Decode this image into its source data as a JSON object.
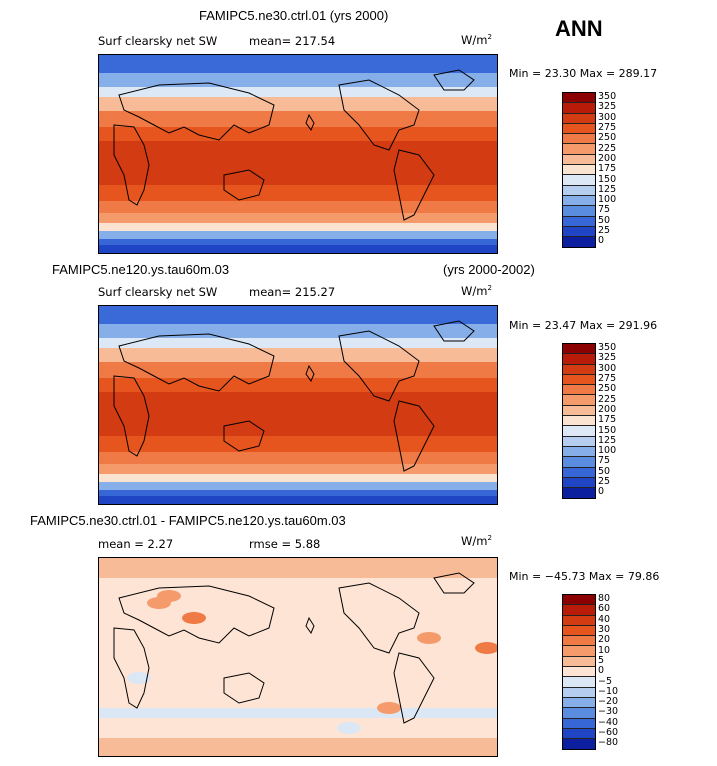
{
  "page": {
    "season": "ANN"
  },
  "panels": [
    {
      "title_left": "FAMIPC5.ne30.ctrl.01 (yrs 2000)",
      "title_right": "",
      "variable": "Surf clearsky net SW",
      "mean_label": "mean= 217.54",
      "units": "W/m",
      "units_sup": "2",
      "minmax": "Min =  23.30 Max = 289.17",
      "colorbar": {
        "labels": [
          "350",
          "325",
          "300",
          "275",
          "250",
          "225",
          "200",
          "175",
          "150",
          "125",
          "100",
          "75",
          "50",
          "25",
          "0"
        ],
        "colors": [
          "#8b0000",
          "#b81c08",
          "#d33b12",
          "#e6551e",
          "#f07a45",
          "#f59a6b",
          "#f8bb98",
          "#fbe3d2",
          "#dde8f6",
          "#b5cdef",
          "#86aee8",
          "#5a8ce0",
          "#3766d6",
          "#1f44c4",
          "#0c1f9e"
        ]
      },
      "map_type": "abs"
    },
    {
      "title_left": "FAMIPC5.ne120.ys.tau60m.03",
      "title_right": "(yrs 2000-2002)",
      "variable": "Surf clearsky net SW",
      "mean_label": "mean= 215.27",
      "units": "W/m",
      "units_sup": "2",
      "minmax": "Min =  23.47 Max = 291.96",
      "colorbar": {
        "labels": [
          "350",
          "325",
          "300",
          "275",
          "250",
          "225",
          "200",
          "175",
          "150",
          "125",
          "100",
          "75",
          "50",
          "25",
          "0"
        ],
        "colors": [
          "#8b0000",
          "#b81c08",
          "#d33b12",
          "#e6551e",
          "#f07a45",
          "#f59a6b",
          "#f8bb98",
          "#fbe3d2",
          "#dde8f6",
          "#b5cdef",
          "#86aee8",
          "#5a8ce0",
          "#3766d6",
          "#1f44c4",
          "#0c1f9e"
        ]
      },
      "map_type": "abs"
    },
    {
      "title_left": "FAMIPC5.ne30.ctrl.01 - FAMIPC5.ne120.ys.tau60m.03",
      "title_right": "",
      "mean_label": "mean =   2.27",
      "rmse_label": "rmse =   5.88",
      "units": "W/m",
      "units_sup": "2",
      "minmax": "Min = −45.73 Max =  79.86",
      "colorbar": {
        "labels": [
          "80",
          "60",
          "40",
          "30",
          "20",
          "10",
          "5",
          "0",
          "−5",
          "−10",
          "−20",
          "−30",
          "−40",
          "−60",
          "−80"
        ],
        "colors": [
          "#8b0000",
          "#b81c08",
          "#d33b12",
          "#e6551e",
          "#f07a45",
          "#f59a6b",
          "#f8bb98",
          "#fde4d5",
          "#dce7f6",
          "#b5cdef",
          "#86aee8",
          "#5a8ce0",
          "#3766d6",
          "#1f44c4",
          "#0c1f9e"
        ]
      },
      "map_type": "diff"
    }
  ]
}
